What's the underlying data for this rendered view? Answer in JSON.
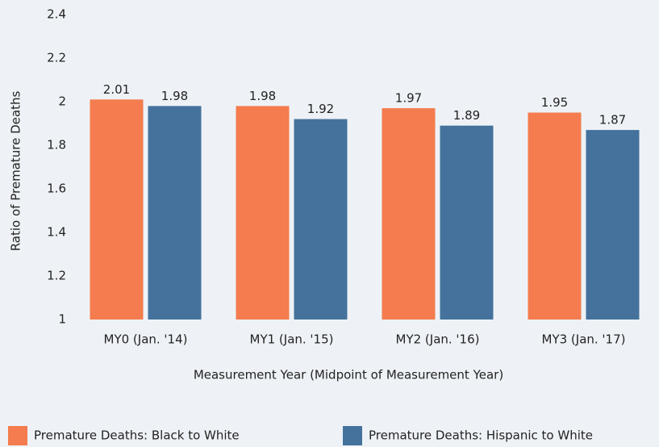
{
  "chart_data": {
    "type": "bar",
    "xlabel": "Measurement Year (Midpoint of Measurement Year)",
    "ylabel": "Ratio of Premature Deaths",
    "categories": [
      "MY0 (Jan. '14)",
      "MY1 (Jan. '15)",
      "MY2 (Jan. '16)",
      "MY3 (Jan. '17)"
    ],
    "series": [
      {
        "name": "Premature Deaths: Black to White",
        "color": "#f47c4e",
        "values": [
          2.01,
          1.98,
          1.97,
          1.95
        ]
      },
      {
        "name": "Premature Deaths: Hispanic to White",
        "color": "#44729c",
        "values": [
          1.98,
          1.92,
          1.89,
          1.87
        ]
      }
    ],
    "ylim": [
      1,
      2.4
    ],
    "yticks": [
      1,
      1.2,
      1.4,
      1.6,
      1.8,
      2,
      2.2,
      2.4
    ],
    "grid": false,
    "legend": "bottom"
  }
}
